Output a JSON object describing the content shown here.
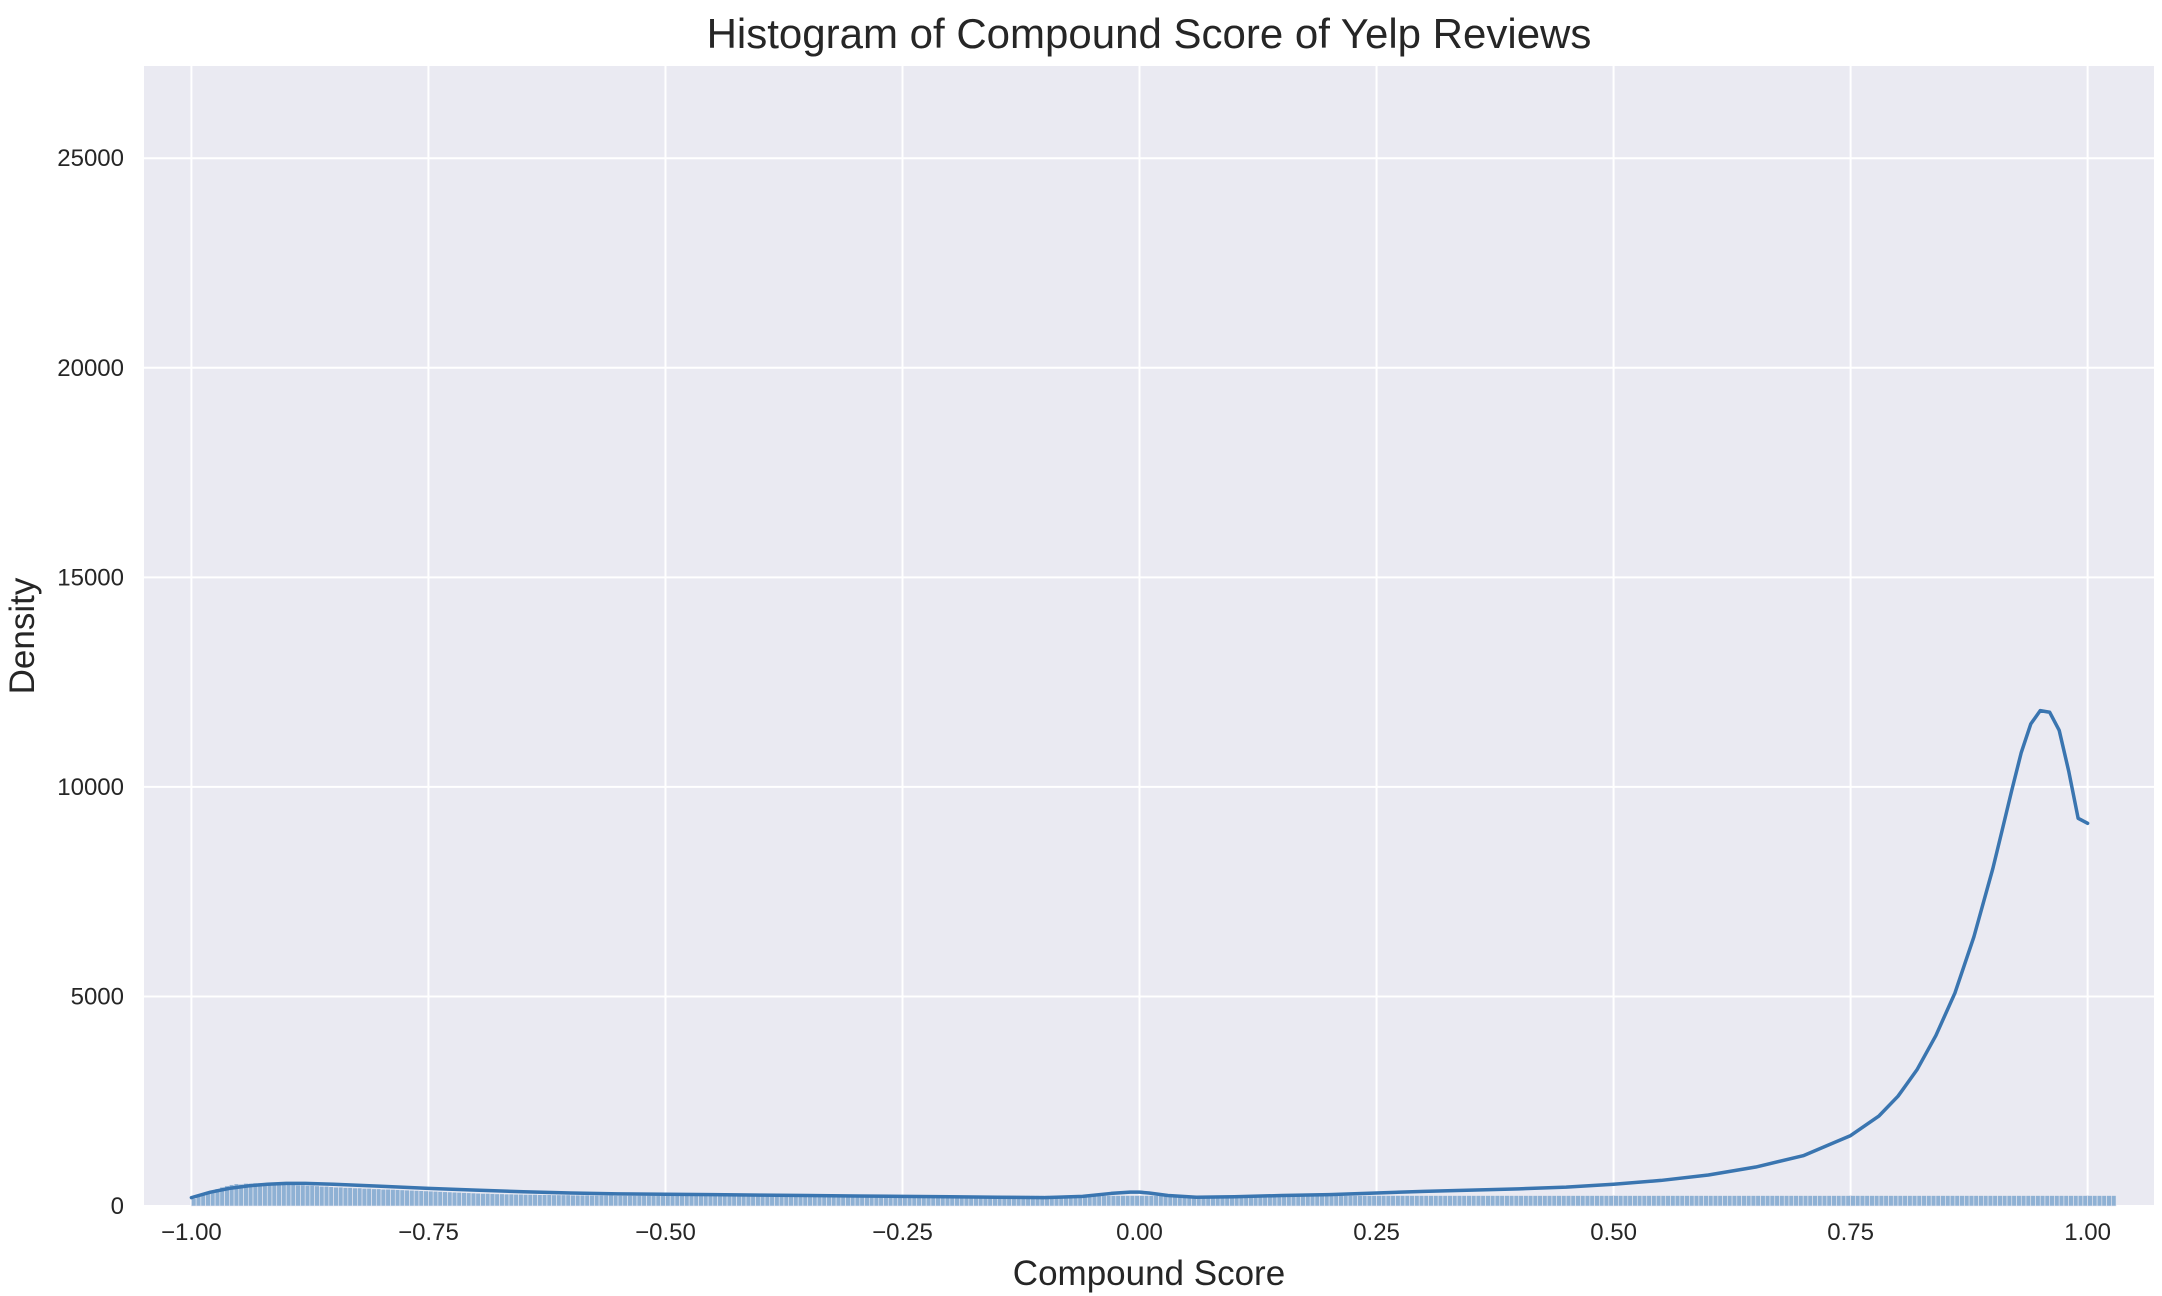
{
  "chart_data": {
    "type": "histogram",
    "title": "Histogram of Compound Score of Yelp Reviews",
    "xlabel": "Compound Score",
    "ylabel": "Density",
    "xlim": [
      -1.05,
      1.07
    ],
    "ylim": [
      0,
      27200
    ],
    "xticks": [
      -1.0,
      -0.75,
      -0.5,
      -0.25,
      0.0,
      0.25,
      0.5,
      0.75,
      1.0
    ],
    "xtick_labels": [
      "−1.00",
      "−0.75",
      "−0.50",
      "−0.25",
      "0.00",
      "0.25",
      "0.50",
      "0.75",
      "1.00"
    ],
    "yticks": [
      0,
      5000,
      10000,
      15000,
      20000,
      25000
    ],
    "ytick_labels": [
      "0",
      "5000",
      "10000",
      "15000",
      "20000",
      "25000"
    ],
    "grid": true,
    "colors": {
      "background": "#eaeaf2",
      "grid": "#ffffff",
      "bar": "#8fb1d4",
      "bar_edge": "#eaeaf2",
      "kde": "#3a75b0"
    },
    "bins": {
      "start": -1.0,
      "width": 0.005,
      "values": [
        180,
        240,
        280,
        330,
        370,
        410,
        450,
        480,
        510,
        530,
        520,
        540,
        540,
        550,
        550,
        540,
        540,
        530,
        530,
        520,
        520,
        510,
        500,
        500,
        490,
        490,
        480,
        470,
        470,
        460,
        450,
        450,
        440,
        440,
        430,
        430,
        420,
        420,
        410,
        410,
        400,
        400,
        395,
        390,
        385,
        380,
        375,
        370,
        365,
        360,
        355,
        350,
        345,
        340,
        335,
        330,
        325,
        320,
        315,
        310,
        305,
        300,
        300,
        295,
        290,
        290,
        285,
        285,
        280,
        280,
        275,
        275,
        275,
        270,
        270,
        270,
        265,
        265,
        265,
        265,
        260,
        260,
        260,
        260,
        255,
        255,
        255,
        255,
        255,
        250,
        250,
        250,
        250,
        250,
        250,
        250,
        250,
        250,
        250,
        250,
        250,
        250,
        250,
        250,
        250,
        250,
        250,
        250,
        250,
        250,
        250,
        250,
        250,
        250,
        250,
        250,
        250,
        250,
        250,
        250,
        250,
        250,
        250,
        250,
        250,
        250,
        250,
        250,
        250,
        250,
        250,
        250,
        250,
        250,
        250,
        250,
        250,
        250,
        250,
        250,
        250,
        250,
        250,
        250,
        250,
        250,
        250,
        250,
        250,
        250,
        250,
        250,
        250,
        250,
        250,
        250,
        250,
        250,
        250,
        250,
        250,
        250,
        250,
        250,
        250,
        250,
        250,
        250,
        250,
        250,
        250,
        250,
        250,
        250,
        250,
        250,
        250,
        250,
        250,
        250,
        250,
        250,
        250,
        250,
        250,
        250,
        250,
        250,
        250,
        250,
        250,
        250,
        250,
        250,
        250,
        250,
        250,
        250,
        250,
        250,
        250,
        250,
        250,
        250,
        250,
        250,
        250,
        250,
        250,
        250,
        250,
        250,
        250,
        250,
        250,
        250,
        250,
        250,
        250,
        250,
        250,
        250,
        250,
        250,
        250,
        250,
        250,
        250,
        250,
        250,
        250,
        250,
        250,
        250,
        250,
        250,
        250,
        250,
        250,
        250,
        250,
        250,
        250,
        250,
        250,
        250,
        250,
        250,
        250,
        250,
        250,
        250,
        250,
        250,
        250,
        250,
        250,
        250,
        250,
        250,
        250,
        250,
        250,
        250,
        250,
        250,
        250,
        250,
        250,
        250,
        250,
        250,
        250,
        250,
        250,
        250,
        250,
        250,
        250,
        250,
        250,
        250,
        250,
        250,
        250,
        250,
        250,
        250,
        250,
        250,
        250,
        250,
        250,
        250,
        250,
        250,
        250,
        250,
        250,
        250,
        250,
        250,
        250,
        250,
        250,
        250,
        250,
        250,
        250,
        250,
        250,
        250,
        250,
        250,
        250,
        250,
        250,
        250,
        250,
        250,
        250,
        250,
        250,
        250,
        250,
        250,
        250,
        250,
        250,
        250,
        250,
        250,
        250,
        250,
        250,
        250,
        250,
        250,
        250,
        250,
        250,
        250,
        250,
        250,
        250,
        250,
        250,
        250,
        250,
        250,
        250,
        250,
        250,
        250,
        250,
        250,
        250,
        250,
        250,
        250,
        250,
        250,
        250,
        250,
        250,
        250,
        250,
        250,
        250,
        250,
        250,
        250,
        250,
        250,
        250,
        250,
        250,
        250,
        250,
        250,
        250,
        250,
        250,
        250,
        250,
        250,
        250,
        250,
        250,
        250,
        250,
        250,
        250,
        250,
        250,
        250,
        250,
        250,
        250,
        250,
        250,
        250,
        250,
        250,
        250,
        250
      ]
    },
    "kde": {
      "x": [
        -1.0,
        -0.98,
        -0.96,
        -0.94,
        -0.92,
        -0.9,
        -0.88,
        -0.85,
        -0.8,
        -0.75,
        -0.7,
        -0.65,
        -0.6,
        -0.55,
        -0.5,
        -0.45,
        -0.4,
        -0.35,
        -0.3,
        -0.25,
        -0.2,
        -0.15,
        -0.1,
        -0.06,
        -0.03,
        -0.01,
        0.0,
        0.01,
        0.03,
        0.06,
        0.1,
        0.15,
        0.2,
        0.25,
        0.3,
        0.35,
        0.4,
        0.45,
        0.5,
        0.55,
        0.6,
        0.65,
        0.7,
        0.75,
        0.78,
        0.8,
        0.82,
        0.84,
        0.86,
        0.88,
        0.9,
        0.91,
        0.92,
        0.93,
        0.94,
        0.95,
        0.96,
        0.97,
        0.98,
        0.99,
        1.0
      ],
      "y": [
        200,
        330,
        420,
        480,
        520,
        540,
        540,
        520,
        470,
        420,
        380,
        340,
        310,
        290,
        280,
        270,
        260,
        250,
        240,
        230,
        220,
        210,
        200,
        230,
        300,
        330,
        330,
        310,
        250,
        210,
        220,
        250,
        270,
        310,
        350,
        380,
        410,
        450,
        520,
        610,
        740,
        930,
        1200,
        1680,
        2150,
        2620,
        3250,
        4070,
        5080,
        6420,
        8050,
        8980,
        9920,
        10820,
        11500,
        11820,
        11780,
        11350,
        10380,
        9250,
        9130
      ]
    }
  }
}
